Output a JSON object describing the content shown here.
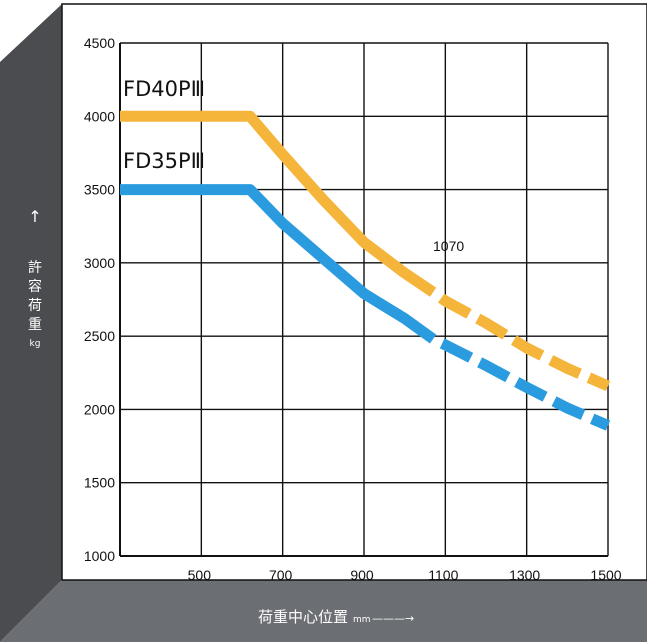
{
  "colors": {
    "frame_left": "#4a4c4f",
    "frame_bottom": "#6b6e72",
    "plot_bg": "#ffffff",
    "grid": "#111111",
    "series_a": "#f5b43a",
    "series_b": "#2b9be0",
    "axis_text_light": "#ffffff"
  },
  "chart_data": {
    "type": "line",
    "xlabel": "荷重中心位置",
    "xlabel_unit": "mm",
    "xlabel_arrow": "———→",
    "ylabel_chars": [
      "許",
      "容",
      "荷",
      "重"
    ],
    "ylabel_unit": "kg",
    "ylabel_arrow": "↑",
    "xlim": [
      300,
      1500
    ],
    "ylim": [
      1000,
      4500
    ],
    "x_ticks": [
      500,
      700,
      900,
      1100,
      1300,
      1500
    ],
    "x_tick_labels": [
      "500",
      "700",
      "900",
      "1100",
      "1300",
      "1500"
    ],
    "y_ticks": [
      1000,
      1500,
      2000,
      2500,
      3000,
      3500,
      4000,
      4500
    ],
    "y_tick_labels": [
      "1000",
      "1500",
      "2000",
      "2500",
      "3000",
      "3500",
      "4000",
      "4500"
    ],
    "grid": true,
    "solid_until_x": 1070,
    "annotation": {
      "text": "1070",
      "x": 1070,
      "y": 3100
    },
    "series": [
      {
        "name": "FD40PⅢ",
        "label_anchor": [
          300,
          4220
        ],
        "points": [
          [
            300,
            4000
          ],
          [
            620,
            4000
          ],
          [
            700,
            3740
          ],
          [
            800,
            3430
          ],
          [
            900,
            3140
          ],
          [
            1000,
            2930
          ],
          [
            1070,
            2800
          ],
          [
            1100,
            2740
          ],
          [
            1200,
            2590
          ],
          [
            1300,
            2420
          ],
          [
            1400,
            2280
          ],
          [
            1500,
            2160
          ]
        ]
      },
      {
        "name": "FD35PⅢ",
        "label_anchor": [
          300,
          3700
        ],
        "points": [
          [
            300,
            3500
          ],
          [
            620,
            3500
          ],
          [
            700,
            3270
          ],
          [
            800,
            3030
          ],
          [
            900,
            2790
          ],
          [
            1000,
            2620
          ],
          [
            1070,
            2480
          ],
          [
            1100,
            2440
          ],
          [
            1200,
            2300
          ],
          [
            1300,
            2150
          ],
          [
            1400,
            2010
          ],
          [
            1500,
            1890
          ]
        ]
      }
    ]
  }
}
